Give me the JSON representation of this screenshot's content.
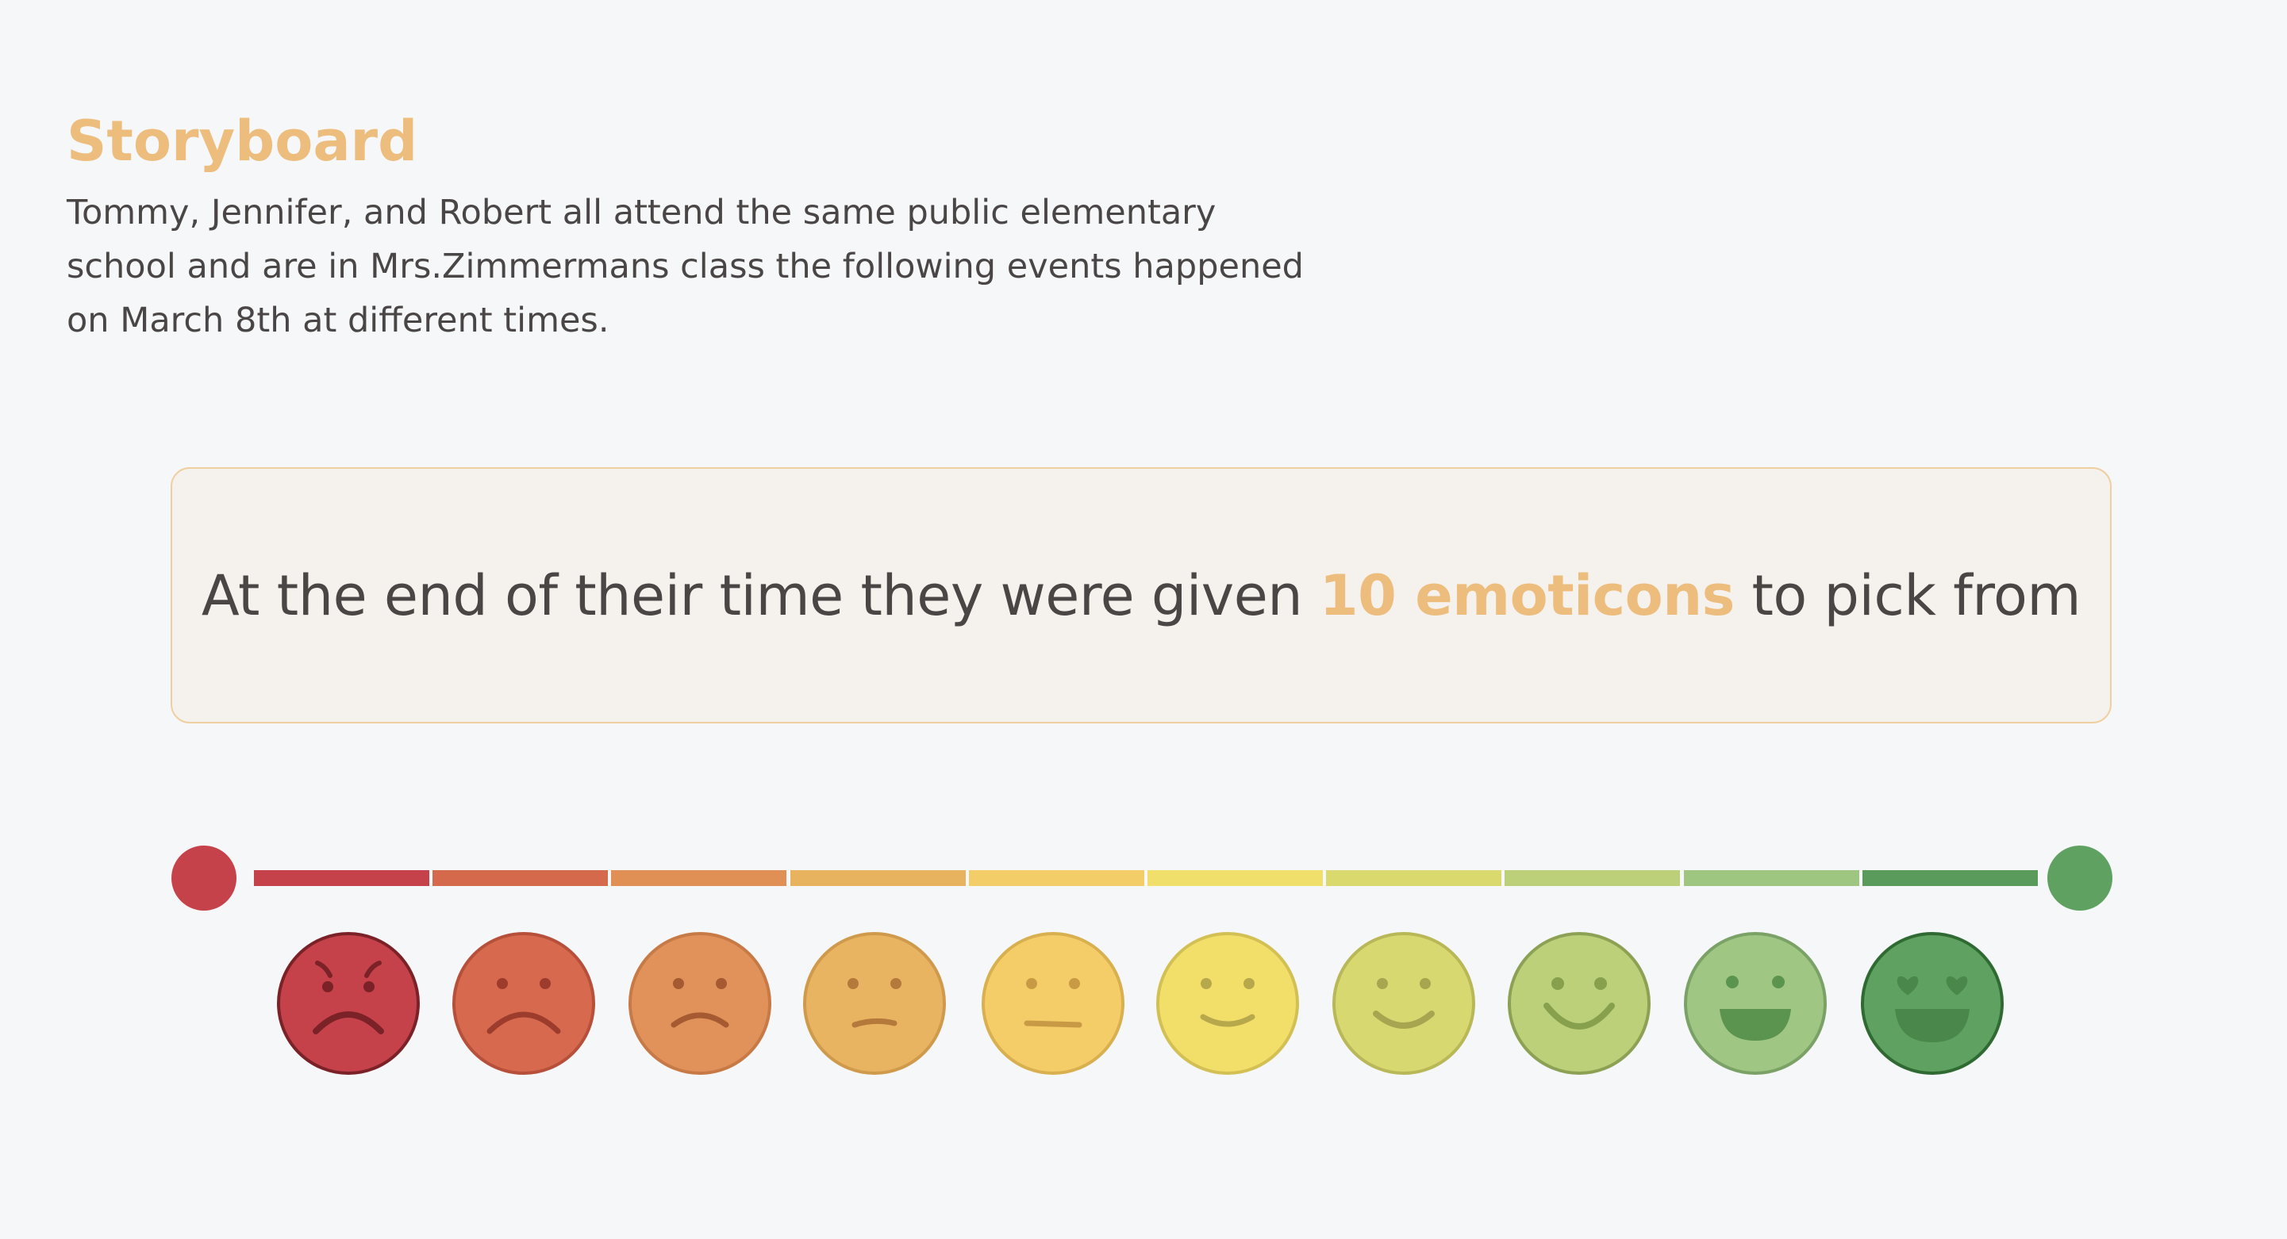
{
  "storyboard": {
    "title": "Storyboard",
    "intro": "Tommy, Jennifer, and Robert all attend the same public elementary school and are in Mrs.Zimmermans class the following events happened on March 8th at different times."
  },
  "callout": {
    "before": "At the end of their time they were given ",
    "highlight": "10 emoticons",
    "after": " to pick from"
  },
  "scale": {
    "start_dot_color": "#c5424b",
    "end_dot_color": "#5fa160",
    "segment_colors": [
      "#c5424b",
      "#d4694b",
      "#e08f55",
      "#e8b35e",
      "#f3cd68",
      "#f0df6a",
      "#d9d96e",
      "#bcd07a",
      "#9fc681",
      "#5a9a5b"
    ],
    "emoticons": [
      {
        "name": "furious-face-icon",
        "fill": "#c5424b",
        "stroke": "#7a2227",
        "feature": "#7a2227"
      },
      {
        "name": "sad-face-icon",
        "fill": "#d76a4e",
        "stroke": "#b6503a",
        "feature": "#9c3c2c"
      },
      {
        "name": "unhappy-face-icon",
        "fill": "#e0925a",
        "stroke": "#c77a45",
        "feature": "#a65a32"
      },
      {
        "name": "slightly-unhappy-face-icon",
        "fill": "#e9b461",
        "stroke": "#cf9a4c",
        "feature": "#b47a3c"
      },
      {
        "name": "neutral-face-icon",
        "fill": "#f4cd69",
        "stroke": "#d9b050",
        "feature": "#c99a45"
      },
      {
        "name": "slight-smile-face-icon",
        "fill": "#f2df69",
        "stroke": "#d3c055",
        "feature": "#b8a84c"
      },
      {
        "name": "smile-face-icon",
        "fill": "#d8d870",
        "stroke": "#b8b858",
        "feature": "#a8a550"
      },
      {
        "name": "happy-face-icon",
        "fill": "#bbd078",
        "stroke": "#8da155",
        "feature": "#86a04e"
      },
      {
        "name": "grinning-face-icon",
        "fill": "#9fc683",
        "stroke": "#7aa266",
        "feature": "#5a944f"
      },
      {
        "name": "heart-eyes-face-icon",
        "fill": "#5fa160",
        "stroke": "#2f6a33",
        "feature": "#4a874a"
      }
    ]
  }
}
